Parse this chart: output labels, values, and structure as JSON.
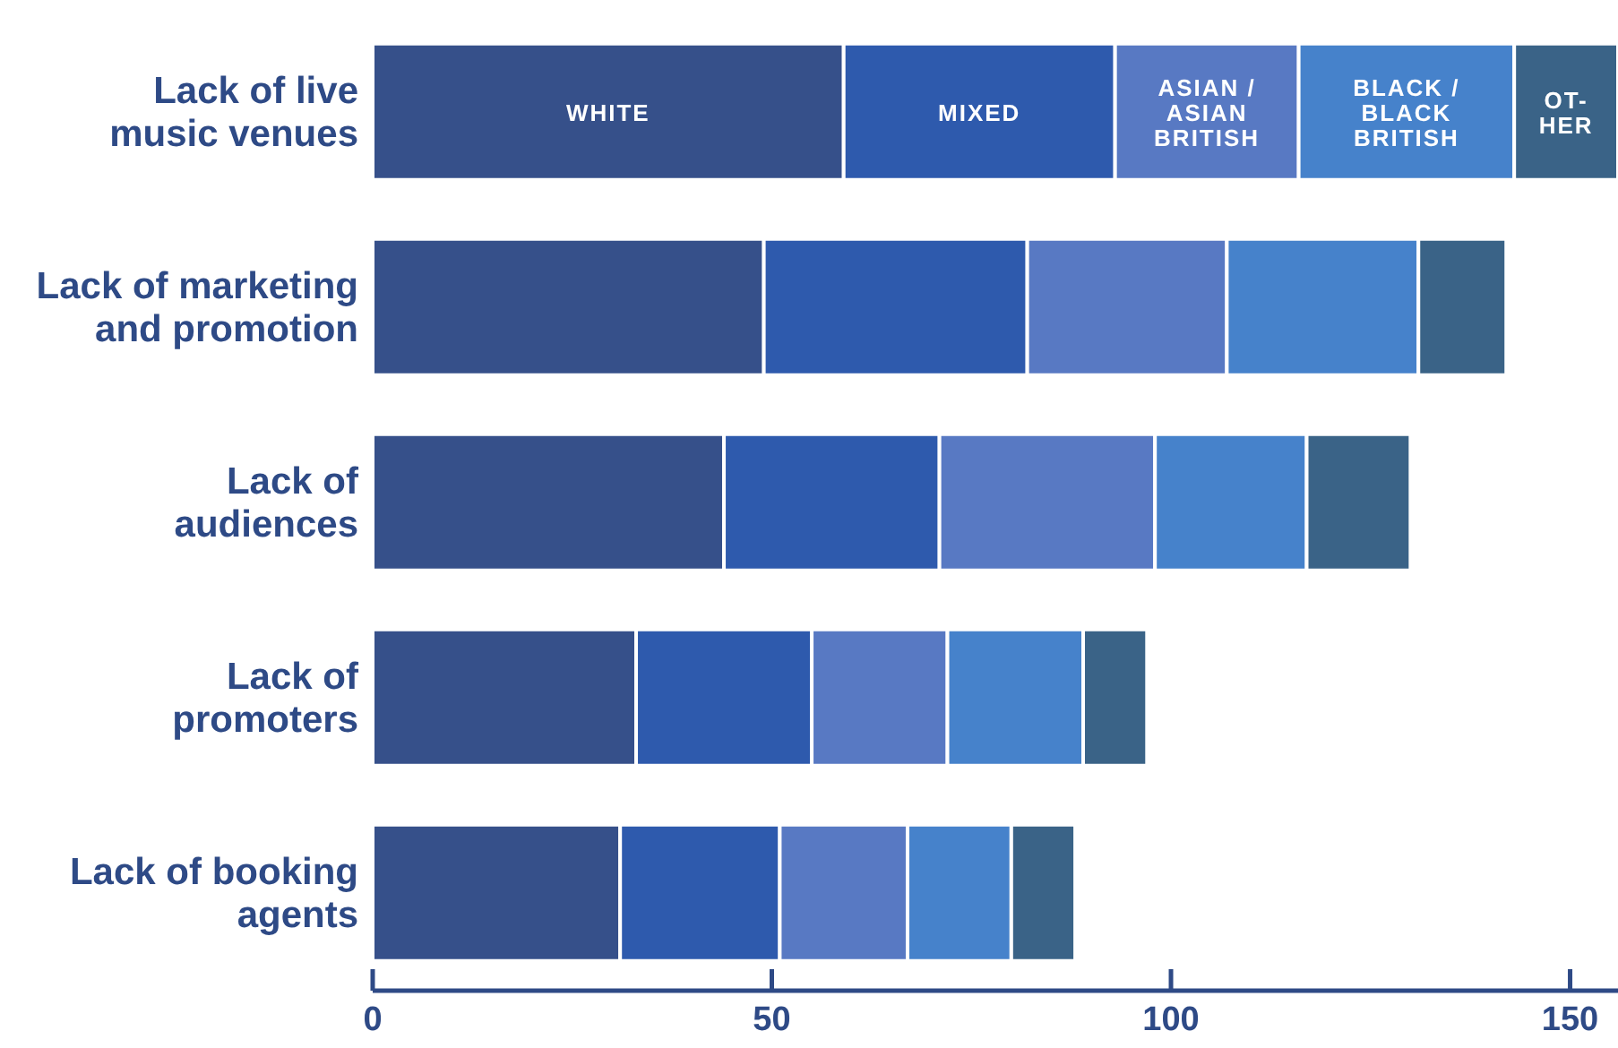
{
  "chart_data": {
    "type": "bar",
    "orientation": "horizontal",
    "stacked": true,
    "categories": [
      "Lack of live music venues",
      "Lack of marketing and promotion",
      "Lack of audiences",
      "Lack of promoters",
      "Lack of booking agents"
    ],
    "series": [
      {
        "name": "WHITE",
        "color": "#36508a",
        "values": [
          59,
          49,
          44,
          33,
          31
        ]
      },
      {
        "name": "MIXED",
        "color": "#2e5aad",
        "values": [
          34,
          33,
          27,
          22,
          20
        ]
      },
      {
        "name": "ASIAN / ASIAN BRITISH",
        "color": "#5879c3",
        "values": [
          23,
          25,
          27,
          17,
          16
        ]
      },
      {
        "name": "BLACK / BLACK BRITISH",
        "color": "#4682cb",
        "values": [
          27,
          24,
          19,
          17,
          13
        ]
      },
      {
        "name": "OT-HER",
        "color": "#3a6387",
        "values": [
          13,
          11,
          13,
          8,
          8
        ]
      }
    ],
    "xlim": [
      0,
      156
    ],
    "xticks": [
      0,
      50,
      100,
      150
    ]
  }
}
